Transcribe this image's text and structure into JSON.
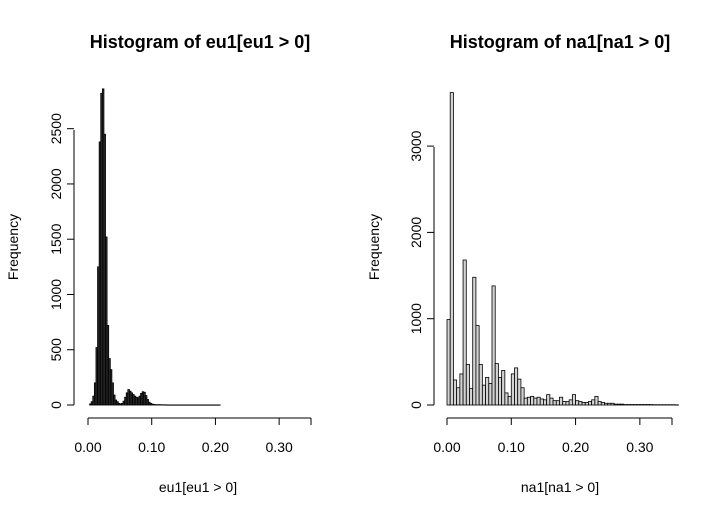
{
  "chart_data": [
    {
      "type": "bar",
      "title": "Histogram of eu1[eu1 > 0]",
      "xlabel": "eu1[eu1 > 0]",
      "ylabel": "Frequency",
      "xlim": [
        0,
        0.35
      ],
      "ylim": [
        0,
        2850
      ],
      "x_ticks": [
        0.0,
        0.1,
        0.2,
        0.3
      ],
      "x_tick_labels": [
        "0.00",
        "0.10",
        "0.20",
        "0.30"
      ],
      "y_ticks": [
        0,
        500,
        1000,
        1500,
        2000,
        2500
      ],
      "y_tick_labels": [
        "0",
        "500",
        "1000",
        "1500",
        "2000",
        "2500"
      ],
      "bar_color": "#333333",
      "bin_width": 0.0025,
      "bin_start": 0.0025,
      "values": [
        10,
        30,
        80,
        200,
        520,
        1250,
        2380,
        2820,
        2860,
        2450,
        1520,
        720,
        420,
        320,
        200,
        90,
        45,
        30,
        15,
        10,
        15,
        35,
        70,
        110,
        140,
        125,
        110,
        95,
        80,
        70,
        65,
        80,
        105,
        120,
        115,
        85,
        50,
        25,
        15,
        8,
        5,
        3,
        3,
        3,
        3,
        2,
        2,
        2,
        1,
        1,
        1,
        1,
        1,
        1,
        1,
        1,
        1,
        1,
        1,
        1,
        1,
        1,
        1,
        1,
        1,
        1,
        1,
        1,
        1,
        1,
        1,
        1,
        1,
        1,
        1,
        1,
        1,
        1,
        1,
        1,
        1,
        1
      ]
    },
    {
      "type": "bar",
      "title": "Histogram of na1[na1 > 0]",
      "xlabel": "na1[na1 > 0]",
      "ylabel": "Frequency",
      "xlim": [
        0,
        0.35
      ],
      "ylim": [
        0,
        3650
      ],
      "x_ticks": [
        0.0,
        0.1,
        0.2,
        0.3
      ],
      "x_tick_labels": [
        "0.00",
        "0.10",
        "0.20",
        "0.30"
      ],
      "y_ticks": [
        0,
        1000,
        2000,
        3000
      ],
      "y_tick_labels": [
        "0",
        "1000",
        "2000",
        "3000"
      ],
      "bar_color": "#d3d3d3",
      "bin_width": 0.005,
      "bin_start": 0.0,
      "values": [
        990,
        3620,
        290,
        200,
        360,
        1680,
        470,
        190,
        1480,
        920,
        470,
        230,
        320,
        250,
        1380,
        480,
        320,
        400,
        140,
        100,
        360,
        430,
        300,
        200,
        80,
        90,
        100,
        80,
        90,
        70,
        60,
        120,
        80,
        50,
        50,
        90,
        40,
        40,
        60,
        120,
        50,
        40,
        30,
        30,
        40,
        60,
        100,
        40,
        30,
        20,
        20,
        20,
        10,
        10,
        10,
        5,
        5,
        5,
        5,
        5,
        5,
        5,
        5,
        5,
        3,
        3,
        3,
        3,
        3,
        3,
        3,
        2
      ]
    }
  ]
}
